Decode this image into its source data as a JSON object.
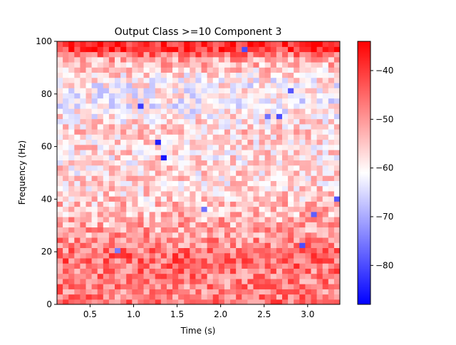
{
  "chart_data": {
    "type": "heatmap",
    "title": "Output Class >=10 Component 3",
    "xlabel": "Time (s)",
    "ylabel": "Frequency (Hz)",
    "xlim": [
      0.12,
      3.37
    ],
    "ylim": [
      0,
      100
    ],
    "x_ticks": [
      0.5,
      1.0,
      1.5,
      2.0,
      2.5,
      3.0
    ],
    "x_tick_labels": [
      "0.5",
      "1.0",
      "1.5",
      "2.0",
      "2.5",
      "3.0"
    ],
    "y_ticks": [
      0,
      20,
      40,
      60,
      80,
      100
    ],
    "y_tick_labels": [
      "0",
      "20",
      "40",
      "60",
      "80",
      "100"
    ],
    "n_time_bins": 49,
    "n_freq_bins": 51,
    "colorbar": {
      "cmap": "bwr",
      "vmin": -88,
      "vmax": -34,
      "ticks": [
        -40,
        -50,
        -60,
        -70,
        -80
      ],
      "tick_labels": [
        "−40",
        "−50",
        "−60",
        "−70",
        "−80"
      ]
    },
    "freq_band_profile": {
      "freq_hz": [
        100,
        97,
        93,
        85,
        75,
        65,
        55,
        45,
        35,
        25,
        18,
        12,
        5,
        0
      ],
      "mean_db": [
        -36,
        -40,
        -52,
        -60,
        -61,
        -56,
        -58,
        -57,
        -54,
        -50,
        -45,
        -47,
        -48,
        -46
      ]
    },
    "low_power_points": [
      {
        "time_s": 1.3,
        "freq_hz": 62,
        "db": -85
      },
      {
        "time_s": 1.37,
        "freq_hz": 56,
        "db": -86
      },
      {
        "time_s": 1.08,
        "freq_hz": 75,
        "db": -82
      },
      {
        "time_s": 2.26,
        "freq_hz": 98,
        "db": -80
      },
      {
        "time_s": 2.68,
        "freq_hz": 72,
        "db": -80
      },
      {
        "time_s": 2.82,
        "freq_hz": 81,
        "db": -79
      },
      {
        "time_s": 3.33,
        "freq_hz": 41,
        "db": -79
      },
      {
        "time_s": 2.97,
        "freq_hz": 22,
        "db": -80
      },
      {
        "time_s": 3.05,
        "freq_hz": 35,
        "db": -78
      },
      {
        "time_s": 2.55,
        "freq_hz": 72,
        "db": -76
      },
      {
        "time_s": 1.78,
        "freq_hz": 36,
        "db": -76
      },
      {
        "time_s": 0.8,
        "freq_hz": 20,
        "db": -75
      }
    ]
  }
}
